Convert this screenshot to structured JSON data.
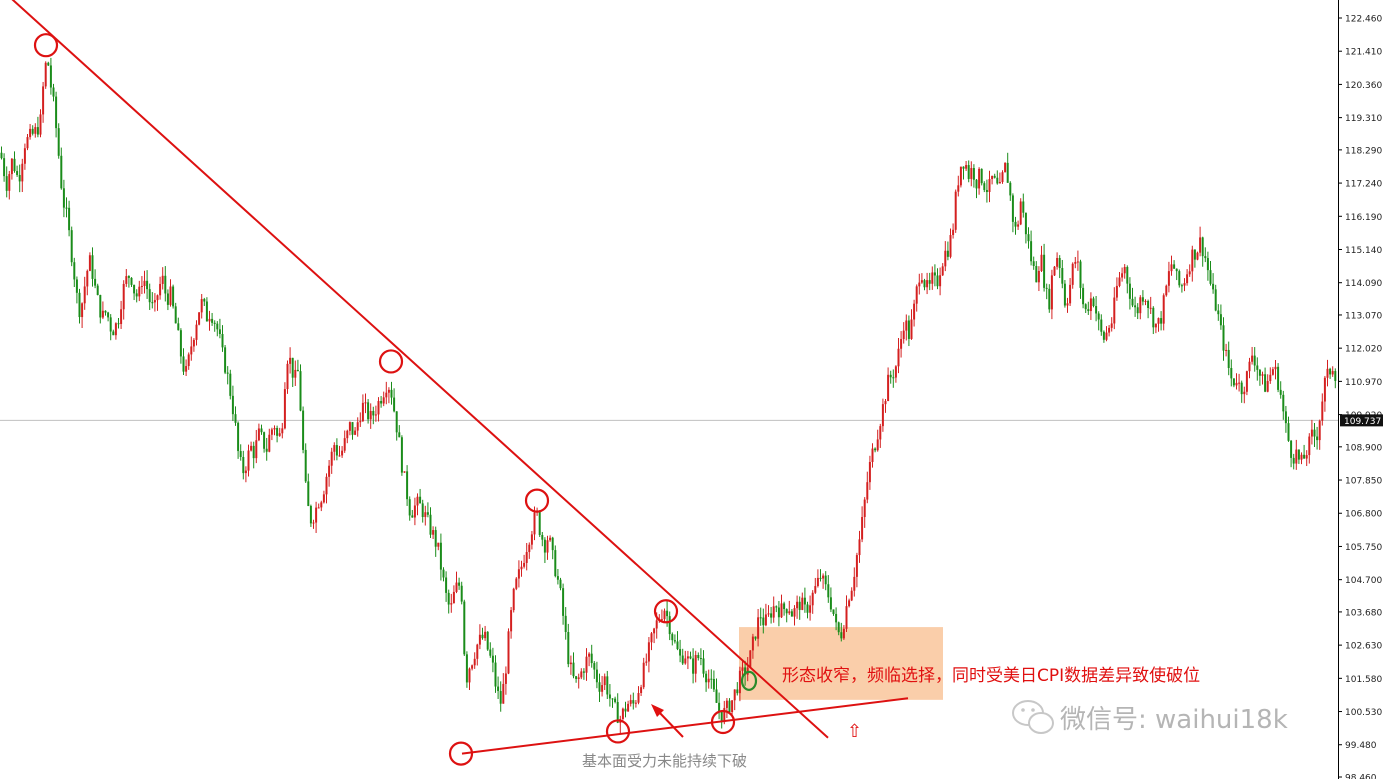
{
  "chart_data": {
    "type": "candlestick",
    "title": "",
    "ylim": [
      98.46,
      122.9
    ],
    "y_ticks": [
      "122.460",
      "121.410",
      "120.360",
      "119.310",
      "118.290",
      "117.240",
      "116.190",
      "115.140",
      "114.090",
      "113.070",
      "112.020",
      "110.970",
      "109.920",
      "108.900",
      "107.850",
      "106.800",
      "105.750",
      "104.700",
      "103.680",
      "102.630",
      "101.580",
      "100.530",
      "99.480",
      "98.460"
    ],
    "current_price": "109.737",
    "current_price_value": 109.737,
    "colors": {
      "up": "#d42020",
      "down": "#1a8c1a",
      "trendline": "#dd1111",
      "price_line": "#c0c0c0",
      "box": "#f9c69b",
      "highlight_green": "#2a8a2a"
    },
    "path_points": [
      [
        0,
        118.2
      ],
      [
        6,
        117.2
      ],
      [
        12,
        118.0
      ],
      [
        18,
        117.3
      ],
      [
        24,
        118.5
      ],
      [
        30,
        118.7
      ],
      [
        36,
        118.9
      ],
      [
        40,
        119.2
      ],
      [
        44,
        120.8
      ],
      [
        47,
        121.2
      ],
      [
        50,
        120.4
      ],
      [
        54,
        119.5
      ],
      [
        58,
        118.2
      ],
      [
        62,
        116.8
      ],
      [
        66,
        116.2
      ],
      [
        70,
        115.3
      ],
      [
        74,
        114.3
      ],
      [
        78,
        113.2
      ],
      [
        82,
        113.5
      ],
      [
        86,
        114.4
      ],
      [
        90,
        114.8
      ],
      [
        94,
        114.0
      ],
      [
        98,
        113.4
      ],
      [
        102,
        113.0
      ],
      [
        106,
        113.2
      ],
      [
        110,
        112.7
      ],
      [
        114,
        112.6
      ],
      [
        118,
        113.0
      ],
      [
        122,
        113.8
      ],
      [
        126,
        114.2
      ],
      [
        130,
        114.4
      ],
      [
        134,
        113.8
      ],
      [
        138,
        113.6
      ],
      [
        142,
        114.3
      ],
      [
        146,
        114.0
      ],
      [
        150,
        113.4
      ],
      [
        154,
        113.2
      ],
      [
        158,
        113.9
      ],
      [
        162,
        114.2
      ],
      [
        166,
        113.6
      ],
      [
        170,
        113.7
      ],
      [
        174,
        113.0
      ],
      [
        178,
        112.3
      ],
      [
        182,
        111.5
      ],
      [
        186,
        111.2
      ],
      [
        190,
        112.0
      ],
      [
        194,
        112.6
      ],
      [
        198,
        113.2
      ],
      [
        202,
        113.5
      ],
      [
        206,
        113.0
      ],
      [
        210,
        113.2
      ],
      [
        214,
        112.9
      ],
      [
        218,
        112.5
      ],
      [
        222,
        111.8
      ],
      [
        226,
        111.3
      ],
      [
        230,
        110.6
      ],
      [
        234,
        109.8
      ],
      [
        238,
        108.6
      ],
      [
        242,
        108.1
      ],
      [
        246,
        108.4
      ],
      [
        250,
        108.9
      ],
      [
        254,
        108.7
      ],
      [
        258,
        109.3
      ],
      [
        262,
        109.1
      ],
      [
        266,
        108.8
      ],
      [
        270,
        109.4
      ],
      [
        274,
        109.6
      ],
      [
        278,
        109.0
      ],
      [
        282,
        109.8
      ],
      [
        286,
        111.8
      ],
      [
        290,
        111.6
      ],
      [
        294,
        111.0
      ],
      [
        298,
        111.3
      ],
      [
        302,
        109.0
      ],
      [
        306,
        107.2
      ],
      [
        310,
        106.6
      ],
      [
        314,
        106.8
      ],
      [
        318,
        107.2
      ],
      [
        322,
        107.4
      ],
      [
        326,
        108.0
      ],
      [
        330,
        108.5
      ],
      [
        334,
        109.0
      ],
      [
        338,
        108.6
      ],
      [
        342,
        108.8
      ],
      [
        346,
        109.2
      ],
      [
        350,
        109.6
      ],
      [
        354,
        109.2
      ],
      [
        358,
        109.8
      ],
      [
        362,
        110.2
      ],
      [
        366,
        110.0
      ],
      [
        370,
        109.8
      ],
      [
        374,
        110.0
      ],
      [
        378,
        110.3
      ],
      [
        382,
        110.6
      ],
      [
        386,
        110.9
      ],
      [
        390,
        110.8
      ],
      [
        394,
        110.0
      ],
      [
        398,
        109.2
      ],
      [
        402,
        108.2
      ],
      [
        406,
        107.5
      ],
      [
        410,
        106.8
      ],
      [
        414,
        107.0
      ],
      [
        418,
        107.1
      ],
      [
        422,
        106.9
      ],
      [
        426,
        106.6
      ],
      [
        430,
        106.3
      ],
      [
        434,
        106.0
      ],
      [
        438,
        105.6
      ],
      [
        442,
        104.8
      ],
      [
        446,
        104.1
      ],
      [
        450,
        103.7
      ],
      [
        454,
        104.3
      ],
      [
        458,
        104.6
      ],
      [
        462,
        104.1
      ],
      [
        465,
        101.4
      ],
      [
        468,
        101.9
      ],
      [
        472,
        102.2
      ],
      [
        476,
        102.6
      ],
      [
        480,
        102.8
      ],
      [
        484,
        102.9
      ],
      [
        488,
        102.4
      ],
      [
        492,
        102.0
      ],
      [
        496,
        101.2
      ],
      [
        500,
        100.8
      ],
      [
        504,
        101.5
      ],
      [
        508,
        102.8
      ],
      [
        512,
        104.0
      ],
      [
        516,
        104.6
      ],
      [
        520,
        105.0
      ],
      [
        524,
        105.5
      ],
      [
        528,
        106.0
      ],
      [
        532,
        106.4
      ],
      [
        536,
        106.8
      ],
      [
        540,
        106.2
      ],
      [
        544,
        105.8
      ],
      [
        548,
        106.1
      ],
      [
        552,
        105.4
      ],
      [
        556,
        104.9
      ],
      [
        560,
        104.2
      ],
      [
        564,
        103.2
      ],
      [
        568,
        102.2
      ],
      [
        572,
        101.6
      ],
      [
        576,
        101.4
      ],
      [
        580,
        101.7
      ],
      [
        584,
        102.0
      ],
      [
        588,
        102.3
      ],
      [
        592,
        102.0
      ],
      [
        596,
        101.6
      ],
      [
        600,
        101.3
      ],
      [
        604,
        101.6
      ],
      [
        608,
        101.1
      ],
      [
        612,
        100.7
      ],
      [
        616,
        100.5
      ],
      [
        620,
        100.3
      ],
      [
        624,
        100.6
      ],
      [
        628,
        100.8
      ],
      [
        632,
        100.7
      ],
      [
        636,
        101.0
      ],
      [
        640,
        101.5
      ],
      [
        644,
        101.9
      ],
      [
        648,
        102.4
      ],
      [
        652,
        102.9
      ],
      [
        656,
        103.3
      ],
      [
        660,
        103.6
      ],
      [
        664,
        103.8
      ],
      [
        668,
        103.4
      ],
      [
        672,
        102.9
      ],
      [
        676,
        102.5
      ],
      [
        680,
        102.2
      ],
      [
        684,
        102.4
      ],
      [
        688,
        102.1
      ],
      [
        692,
        101.9
      ],
      [
        696,
        102.2
      ],
      [
        700,
        102.3
      ],
      [
        704,
        101.8
      ],
      [
        708,
        101.6
      ],
      [
        712,
        101.2
      ],
      [
        716,
        100.8
      ],
      [
        720,
        100.4
      ],
      [
        724,
        100.5
      ],
      [
        728,
        100.7
      ],
      [
        732,
        100.9
      ],
      [
        736,
        101.3
      ],
      [
        740,
        101.6
      ],
      [
        744,
        101.8
      ],
      [
        748,
        102.0
      ],
      [
        752,
        102.6
      ],
      [
        756,
        103.2
      ],
      [
        760,
        103.6
      ],
      [
        764,
        103.3
      ],
      [
        768,
        103.5
      ],
      [
        772,
        103.8
      ],
      [
        776,
        103.9
      ],
      [
        780,
        103.7
      ],
      [
        784,
        103.8
      ],
      [
        788,
        103.9
      ],
      [
        792,
        103.6
      ],
      [
        796,
        103.8
      ],
      [
        800,
        104.0
      ],
      [
        804,
        103.7
      ],
      [
        808,
        103.9
      ],
      [
        812,
        104.2
      ],
      [
        816,
        104.5
      ],
      [
        820,
        104.8
      ],
      [
        824,
        104.5
      ],
      [
        828,
        104.2
      ],
      [
        832,
        103.8
      ],
      [
        836,
        103.1
      ],
      [
        840,
        102.9
      ],
      [
        844,
        103.5
      ],
      [
        848,
        104.2
      ],
      [
        852,
        104.6
      ],
      [
        856,
        105.4
      ],
      [
        860,
        106.1
      ],
      [
        864,
        107.1
      ],
      [
        868,
        108.1
      ],
      [
        872,
        108.7
      ],
      [
        876,
        109.2
      ],
      [
        880,
        109.8
      ],
      [
        884,
        110.4
      ],
      [
        888,
        111.0
      ],
      [
        892,
        111.2
      ],
      [
        896,
        111.5
      ],
      [
        900,
        112.2
      ],
      [
        904,
        113.0
      ],
      [
        908,
        112.4
      ],
      [
        912,
        112.9
      ],
      [
        916,
        113.8
      ],
      [
        920,
        114.6
      ],
      [
        924,
        114.1
      ],
      [
        928,
        113.8
      ],
      [
        932,
        114.2
      ],
      [
        936,
        114.0
      ],
      [
        940,
        114.6
      ],
      [
        944,
        115.0
      ],
      [
        948,
        115.2
      ],
      [
        952,
        115.7
      ],
      [
        956,
        117.0
      ],
      [
        960,
        117.8
      ],
      [
        964,
        118.0
      ],
      [
        968,
        117.5
      ],
      [
        972,
        117.7
      ],
      [
        976,
        117.3
      ],
      [
        980,
        117.5
      ],
      [
        984,
        117.2
      ],
      [
        988,
        117.0
      ],
      [
        992,
        117.4
      ],
      [
        996,
        117.1
      ],
      [
        1000,
        117.0
      ],
      [
        1004,
        117.8
      ],
      [
        1008,
        117.3
      ],
      [
        1012,
        116.2
      ],
      [
        1016,
        115.6
      ],
      [
        1020,
        116.7
      ],
      [
        1024,
        116.0
      ],
      [
        1028,
        115.3
      ],
      [
        1032,
        114.6
      ],
      [
        1036,
        114.3
      ],
      [
        1040,
        115.0
      ],
      [
        1044,
        114.1
      ],
      [
        1048,
        113.3
      ],
      [
        1052,
        114.4
      ],
      [
        1056,
        115.0
      ],
      [
        1060,
        114.6
      ],
      [
        1064,
        113.5
      ],
      [
        1068,
        113.7
      ],
      [
        1072,
        114.5
      ],
      [
        1076,
        114.9
      ],
      [
        1080,
        114.0
      ],
      [
        1084,
        113.1
      ],
      [
        1088,
        113.4
      ],
      [
        1092,
        113.7
      ],
      [
        1096,
        113.1
      ],
      [
        1100,
        112.5
      ],
      [
        1104,
        112.3
      ],
      [
        1108,
        112.7
      ],
      [
        1112,
        112.9
      ],
      [
        1116,
        113.9
      ],
      [
        1120,
        114.3
      ],
      [
        1124,
        114.6
      ],
      [
        1128,
        114.0
      ],
      [
        1132,
        113.4
      ],
      [
        1136,
        113.1
      ],
      [
        1140,
        113.6
      ],
      [
        1144,
        113.8
      ],
      [
        1148,
        113.4
      ],
      [
        1152,
        113.0
      ],
      [
        1156,
        112.7
      ],
      [
        1160,
        112.9
      ],
      [
        1164,
        113.6
      ],
      [
        1168,
        114.3
      ],
      [
        1172,
        114.8
      ],
      [
        1176,
        114.2
      ],
      [
        1180,
        113.9
      ],
      [
        1184,
        114.2
      ],
      [
        1188,
        114.6
      ],
      [
        1192,
        115.0
      ],
      [
        1196,
        115.1
      ],
      [
        1200,
        115.4
      ],
      [
        1204,
        115.0
      ],
      [
        1208,
        114.4
      ],
      [
        1212,
        113.7
      ],
      [
        1216,
        113.3
      ],
      [
        1220,
        112.6
      ],
      [
        1224,
        112.0
      ],
      [
        1228,
        111.4
      ],
      [
        1232,
        110.9
      ],
      [
        1236,
        111.1
      ],
      [
        1240,
        110.7
      ],
      [
        1244,
        110.9
      ],
      [
        1248,
        111.3
      ],
      [
        1252,
        111.9
      ],
      [
        1256,
        111.5
      ],
      [
        1260,
        111.1
      ],
      [
        1264,
        110.8
      ],
      [
        1268,
        111.0
      ],
      [
        1272,
        111.4
      ],
      [
        1276,
        111.2
      ],
      [
        1280,
        110.6
      ],
      [
        1284,
        109.7
      ],
      [
        1288,
        109.1
      ],
      [
        1292,
        108.6
      ],
      [
        1296,
        108.7
      ],
      [
        1300,
        108.3
      ],
      [
        1304,
        108.6
      ],
      [
        1308,
        108.9
      ],
      [
        1312,
        109.3
      ],
      [
        1316,
        109.2
      ],
      [
        1320,
        110.0
      ],
      [
        1324,
        110.9
      ],
      [
        1328,
        111.2
      ],
      [
        1332,
        111.5
      ],
      [
        1336,
        111.1
      ]
    ],
    "trendlines": [
      {
        "from": [
          0,
          123.4
        ],
        "to": [
          828,
          99.7
        ]
      },
      {
        "from": [
          462,
          99.2
        ],
        "to": [
          908,
          100.95
        ]
      }
    ],
    "circle_markers": [
      {
        "x": 46,
        "y": 121.6
      },
      {
        "x": 391,
        "y": 111.6
      },
      {
        "x": 537,
        "y": 107.2
      },
      {
        "x": 666,
        "y": 103.7
      },
      {
        "x": 461,
        "y": 99.2
      },
      {
        "x": 618,
        "y": 99.9
      },
      {
        "x": 723,
        "y": 100.2
      }
    ],
    "green_marker": {
      "x": 749,
      "y": 101.5
    },
    "highlight_box": {
      "x0": 739,
      "x1": 943,
      "y_top": 103.2,
      "y_bottom": 100.9
    },
    "annotations": {
      "main": "形态收窄，频临选择，同时受美日CPI数据差异致使破位",
      "bottom": "基本面受力未能持续下破",
      "up_arrow": "⇧"
    },
    "watermark": "微信号: waihui18k"
  }
}
